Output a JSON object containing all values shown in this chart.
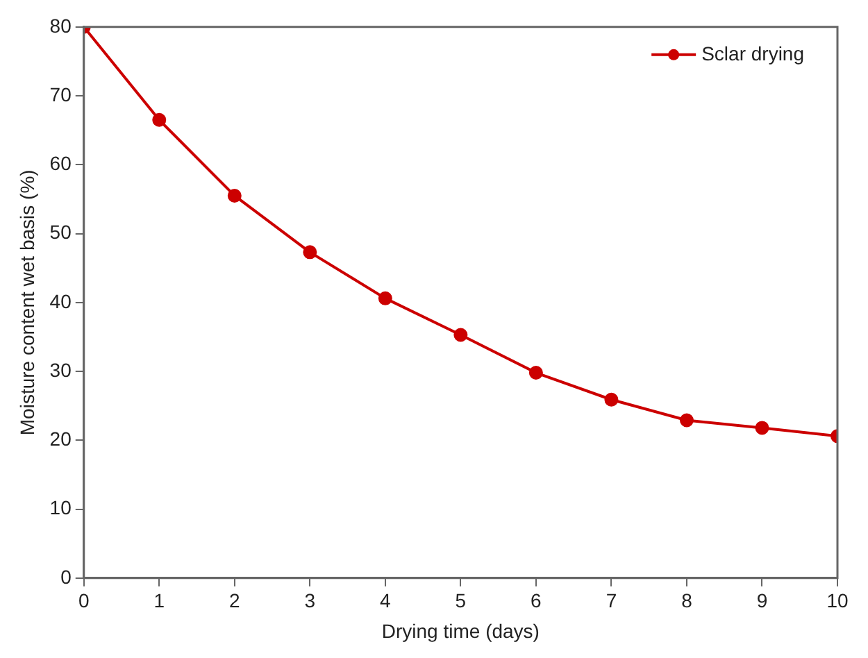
{
  "chart_data": {
    "type": "line",
    "xlabel": "Drying time (days)",
    "ylabel": "Moisture content wet basis (%)",
    "x": [
      0,
      1,
      2,
      3,
      4,
      5,
      6,
      7,
      8,
      9,
      10
    ],
    "series": [
      {
        "name": "Sclar drying",
        "color": "#cc0000",
        "values": [
          80,
          66.5,
          55.5,
          47.3,
          40.6,
          35.3,
          29.8,
          25.9,
          22.9,
          21.8,
          20.6
        ]
      }
    ],
    "xlim": [
      0,
      10
    ],
    "xticks": [
      0,
      1,
      2,
      3,
      4,
      5,
      6,
      7,
      8,
      9,
      10
    ],
    "ylim": [
      0,
      80
    ],
    "yticks": [
      0,
      10,
      20,
      30,
      40,
      50,
      60,
      70,
      80
    ],
    "grid": false,
    "legend": "top right",
    "marker": "circle",
    "line_style": "solid"
  }
}
